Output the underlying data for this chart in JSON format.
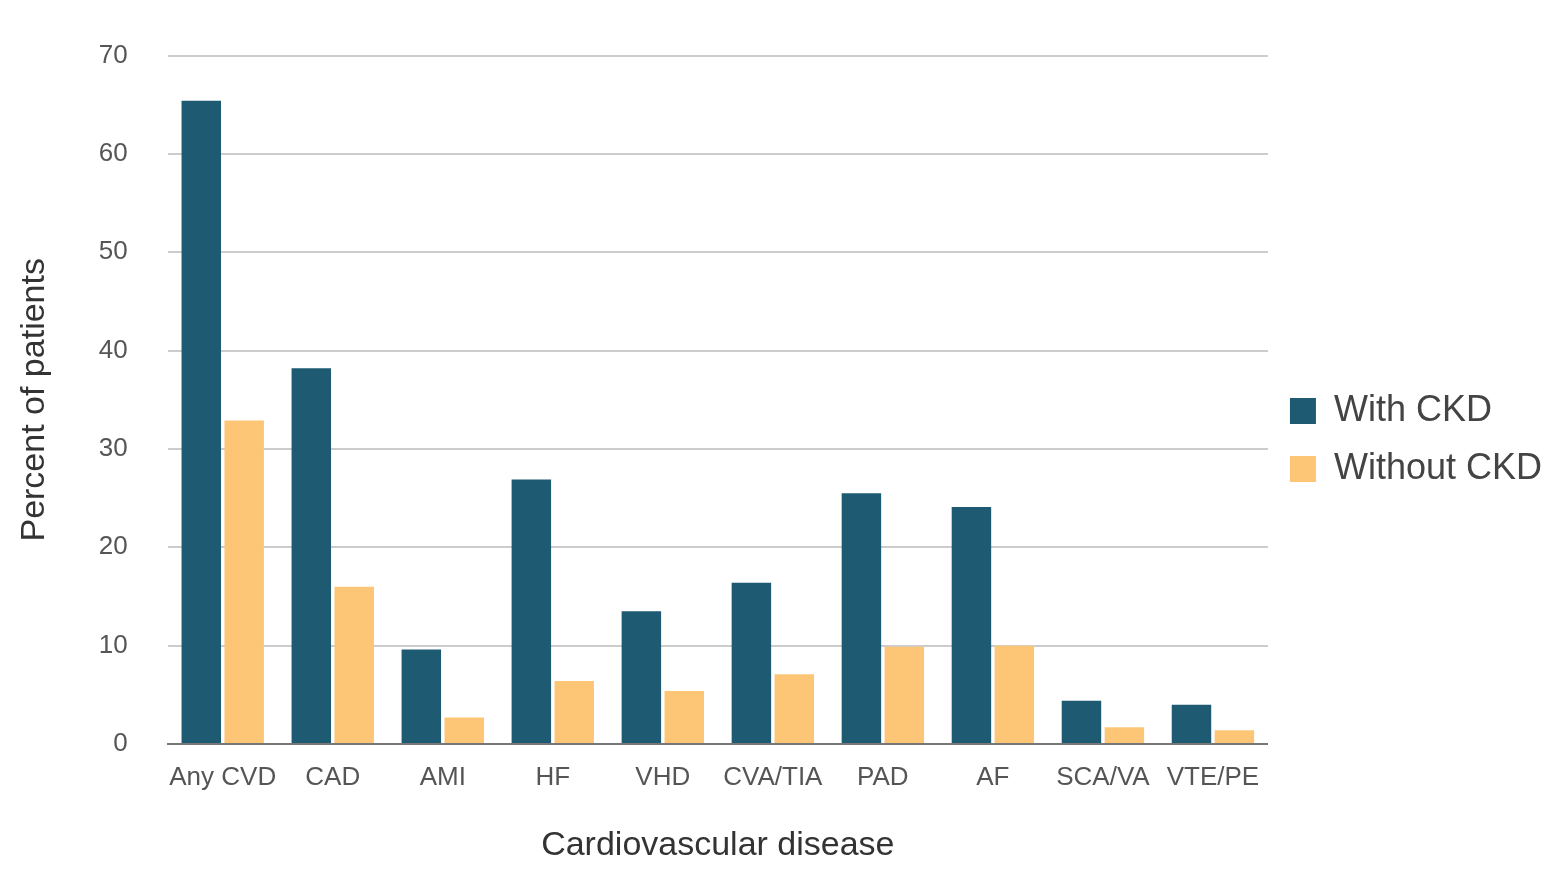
{
  "chart_data": {
    "type": "bar",
    "xlabel": "Cardiovascular disease",
    "ylabel": "Percent of patients",
    "categories": [
      "Any CVD",
      "CAD",
      "AMI",
      "HF",
      "VHD",
      "CVA/TIA",
      "PAD",
      "AF",
      "SCA/VA",
      "VTE/PE"
    ],
    "series": [
      {
        "name": "With CKD",
        "color": "#1f5a73",
        "values": [
          65.4,
          38.2,
          9.6,
          26.9,
          13.5,
          16.4,
          25.5,
          24.1,
          4.4,
          4.0
        ]
      },
      {
        "name": "Without CKD",
        "color": "#fdc677",
        "values": [
          32.9,
          16.0,
          2.7,
          6.4,
          5.4,
          7.1,
          9.9,
          10.0,
          1.7,
          1.4
        ]
      }
    ],
    "ylim": [
      0,
      70
    ],
    "yticks": [
      0,
      10,
      20,
      30,
      40,
      50,
      60,
      70
    ],
    "grid": "y",
    "legend": "right"
  }
}
